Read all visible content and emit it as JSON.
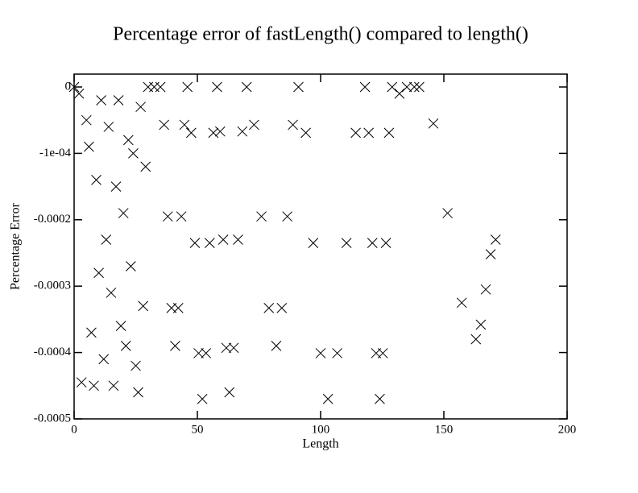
{
  "chart_data": {
    "type": "scatter",
    "title": "Percentage error of fastLength() compared to length()",
    "x_label": "Length",
    "y_label": "Percentage Error",
    "marker": "x",
    "color": "#000000",
    "xlim": [
      0,
      200
    ],
    "xticks": [
      0,
      50,
      100,
      150,
      200
    ],
    "ylim": [
      -0.0005,
      1.94e-05
    ],
    "yticks": [
      0,
      {
        "value": -0.0001,
        "label": "-1e-04"
      },
      -0.0002,
      -0.0003,
      -0.0004,
      -0.0005
    ],
    "x": [
      0,
      2,
      3,
      5,
      6,
      7,
      8,
      9,
      10,
      11,
      12,
      13,
      14,
      15,
      16,
      17,
      18,
      19,
      20,
      21,
      22,
      23,
      24,
      25,
      26,
      27,
      28,
      29,
      30,
      32.5,
      35,
      36.5,
      38,
      39.5,
      41,
      42.25,
      43.5,
      44.75,
      46,
      47.5,
      49,
      50.5,
      52,
      53.5,
      55,
      56.5,
      58,
      59.25,
      60.5,
      61.75,
      63,
      64.75,
      66.5,
      68.25,
      70,
      73,
      76,
      79,
      82,
      84.25,
      86.5,
      88.75,
      91,
      94,
      97,
      100,
      103,
      106.75,
      110.5,
      114.25,
      118,
      119.5,
      121,
      122.5,
      124,
      125.25,
      126.5,
      127.75,
      129,
      132,
      135,
      138,
      140,
      145.75,
      151.5,
      157.25,
      163,
      165,
      167,
      169,
      171
    ],
    "values": [
      0,
      -1e-05,
      -0.000445,
      -5e-05,
      -9e-05,
      -0.00037,
      -0.00045,
      -0.00014,
      -0.00028,
      -2e-05,
      -0.00041,
      -0.00023,
      -6e-05,
      -0.00031,
      -0.00045,
      -0.00015,
      -2e-05,
      -0.00036,
      -0.00019,
      -0.00039,
      -8e-05,
      -0.00027,
      -0.0001,
      -0.00042,
      -0.00046,
      -3e-05,
      -0.00033,
      -0.00012,
      0,
      0,
      0,
      -5.7e-05,
      -0.000195,
      -0.000333,
      -0.00039,
      -0.000333,
      -0.000195,
      -5.7e-05,
      0,
      -6.9e-05,
      -0.000235,
      -0.000401,
      -0.00047,
      -0.000401,
      -0.000235,
      -6.9e-05,
      0,
      -6.7e-05,
      -0.00023,
      -0.000393,
      -0.00046,
      -0.000393,
      -0.00023,
      -6.7e-05,
      0,
      -5.7e-05,
      -0.000195,
      -0.000333,
      -0.00039,
      -0.000333,
      -0.000195,
      -5.7e-05,
      0,
      -6.9e-05,
      -0.000235,
      -0.000401,
      -0.00047,
      -0.000401,
      -0.000235,
      -6.9e-05,
      0,
      -6.9e-05,
      -0.000235,
      -0.000401,
      -0.00047,
      -0.000401,
      -0.000235,
      -6.9e-05,
      0,
      -1e-05,
      0,
      0,
      0,
      -5.5e-05,
      -0.00019,
      -0.000325,
      -0.00038,
      -0.000358,
      -0.000305,
      -0.000252,
      -0.00023
    ]
  }
}
